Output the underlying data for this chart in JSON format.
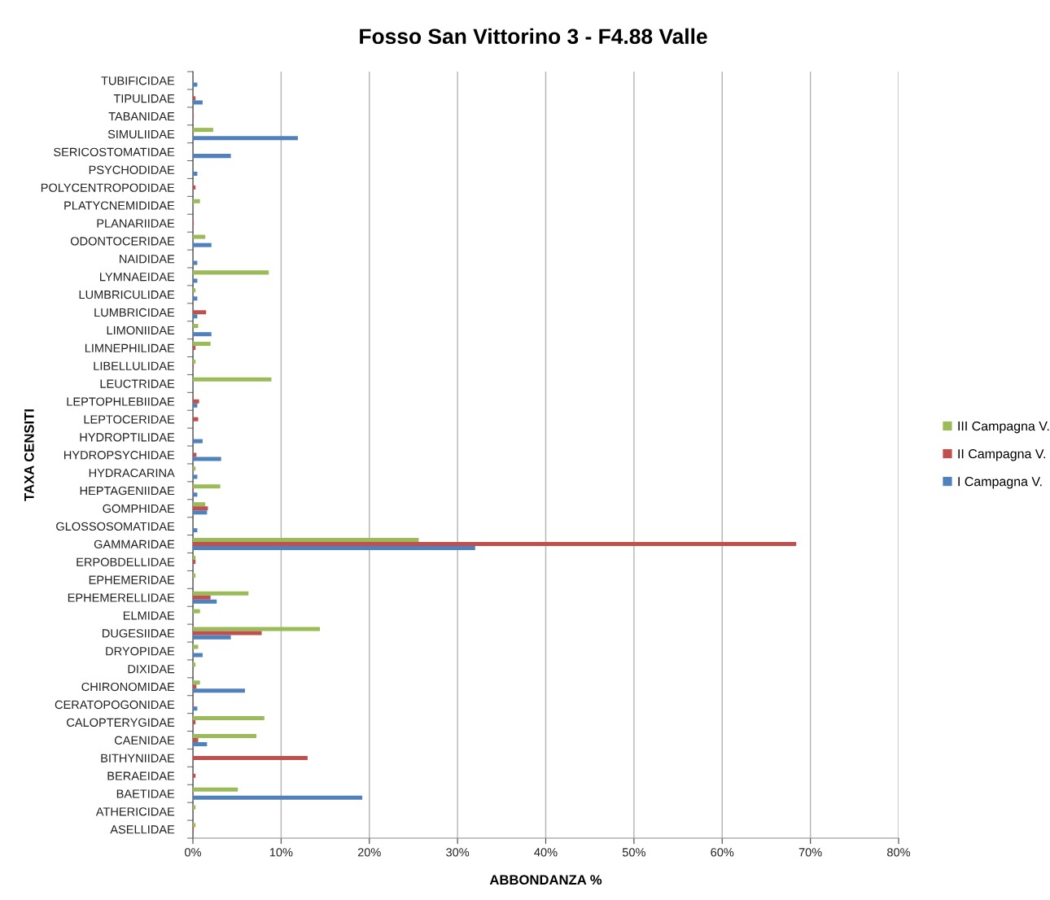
{
  "chart_data": {
    "type": "bar",
    "orientation": "horizontal",
    "title": "Fosso San Vittorino 3 - F4.88 Valle",
    "xlabel": "ABBONDANZA %",
    "ylabel": "TAXA CENSITI",
    "categories": [
      "TUBIFICIDAE",
      "TIPULIDAE",
      "TABANIDAE",
      "SIMULIIDAE",
      "SERICOSTOMATIDAE",
      "PSYCHODIDAE",
      "POLYCENTROPODIDAE",
      "PLATYCNEMIDIDAE",
      "PLANARIIDAE",
      "ODONTOCERIDAE",
      "NAIDIDAE",
      "LYMNAEIDAE",
      "LUMBRICULIDAE",
      "LUMBRICIDAE",
      "LIMONIIDAE",
      "LIMNEPHILIDAE",
      "LIBELLULIDAE",
      "LEUCTRIDAE",
      "LEPTOPHLEBIIDAE",
      "LEPTOCERIDAE",
      "HYDROPTILIDAE",
      "HYDROPSYCHIDAE",
      "HYDRACARINA",
      "HEPTAGENIIDAE",
      "GOMPHIDAE",
      "GLOSSOSOMATIDAE",
      "GAMMARIDAE",
      "ERPOBDELLIDAE",
      "EPHEMERIDAE",
      "EPHEMERELLIDAE",
      "ELMIDAE",
      "DUGESIIDAE",
      "DRYOPIDAE",
      "DIXIDAE",
      "CHIRONOMIDAE",
      "CERATOPOGONIDAE",
      "CALOPTERYGIDAE",
      "CAENIDAE",
      "BITHYNIIDAE",
      "BERAEIDAE",
      "BAETIDAE",
      "ATHERICIDAE",
      "ASELLIDAE"
    ],
    "series": [
      {
        "name": "III Campagna V.",
        "color": "#9bbb59",
        "values": [
          null,
          null,
          null,
          2.3,
          null,
          null,
          null,
          0.8,
          null,
          1.4,
          null,
          8.6,
          0.3,
          null,
          0.6,
          2.0,
          0.3,
          8.9,
          null,
          null,
          null,
          null,
          0.3,
          3.1,
          1.4,
          null,
          25.6,
          0.3,
          0.3,
          6.3,
          0.8,
          14.4,
          0.6,
          0.3,
          0.8,
          null,
          8.1,
          7.2,
          null,
          null,
          5.1,
          0.3,
          0.3
        ]
      },
      {
        "name": "II Campagna V.",
        "color": "#c0504d",
        "values": [
          null,
          0.3,
          0.1,
          null,
          null,
          null,
          0.3,
          null,
          0.1,
          null,
          null,
          null,
          null,
          1.5,
          null,
          0.3,
          0.1,
          null,
          0.7,
          0.6,
          null,
          0.4,
          null,
          0.1,
          1.7,
          null,
          68.4,
          0.3,
          null,
          2.0,
          null,
          7.8,
          null,
          null,
          0.4,
          0.1,
          0.3,
          0.6,
          13.0,
          0.3,
          null,
          null,
          0.1
        ]
      },
      {
        "name": "I Campagna V.",
        "color": "#4f81bd",
        "values": [
          0.5,
          1.1,
          null,
          11.9,
          4.3,
          0.5,
          null,
          null,
          null,
          2.1,
          0.5,
          0.5,
          0.5,
          0.5,
          2.1,
          null,
          null,
          null,
          0.5,
          null,
          1.1,
          3.2,
          0.5,
          0.5,
          1.6,
          0.5,
          32.0,
          null,
          null,
          2.7,
          null,
          4.3,
          1.1,
          null,
          5.9,
          0.5,
          null,
          1.6,
          null,
          null,
          19.2,
          null,
          null
        ]
      }
    ],
    "xlim": [
      0,
      80
    ],
    "xticks": [
      {
        "value": 0,
        "label": "0%"
      },
      {
        "value": 10,
        "label": "10%"
      },
      {
        "value": 20,
        "label": "20%"
      },
      {
        "value": 30,
        "label": "30%"
      },
      {
        "value": 40,
        "label": "40%"
      },
      {
        "value": 50,
        "label": "50%"
      },
      {
        "value": 60,
        "label": "60%"
      },
      {
        "value": 70,
        "label": "70%"
      },
      {
        "value": 80,
        "label": "80%"
      }
    ],
    "grid": "x",
    "legend": "right"
  }
}
